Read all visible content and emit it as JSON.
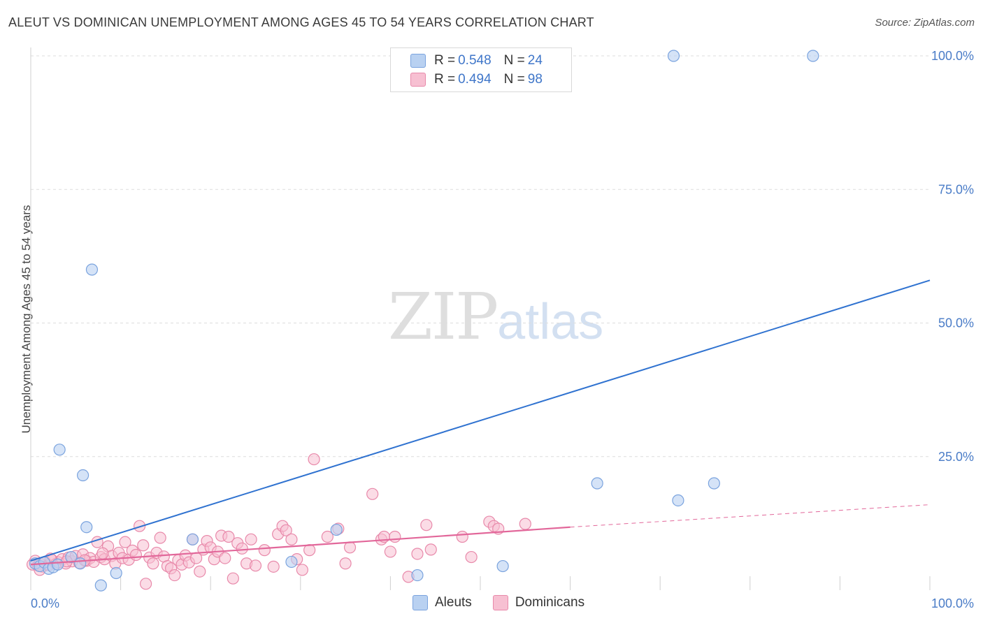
{
  "header": {
    "title": "ALEUT VS DOMINICAN UNEMPLOYMENT AMONG AGES 45 TO 54 YEARS CORRELATION CHART",
    "source": "Source: ZipAtlas.com"
  },
  "watermark": {
    "zip": "ZIP",
    "atlas": "atlas"
  },
  "legend": {
    "rows": [
      {
        "r_label": "R = ",
        "r_value": "0.548",
        "n_label": "N = ",
        "n_value": "24"
      },
      {
        "r_label": "R = ",
        "r_value": "0.494",
        "n_label": "N = ",
        "n_value": "98"
      }
    ],
    "bottom": [
      "Aleuts",
      "Dominicans"
    ]
  },
  "colors": {
    "aleut_fill": "#b9d1f1",
    "aleut_stroke": "#7aa3de",
    "aleut_line": "#2f72d0",
    "dominican_fill": "#f7c0d2",
    "dominican_stroke": "#e889aa",
    "dominican_line": "#e2679a",
    "grid": "#dddddd",
    "tick_text": "#4a7cc7"
  },
  "chart_data": {
    "type": "scatter",
    "title": "ALEUT VS DOMINICAN UNEMPLOYMENT AMONG AGES 45 TO 54 YEARS CORRELATION CHART",
    "xlabel": "",
    "ylabel": "Unemployment Among Ages 45 to 54 years",
    "xlim": [
      0,
      100
    ],
    "ylim": [
      0,
      100
    ],
    "x_tick_labels": [
      "0.0%",
      "100.0%"
    ],
    "y_tick_labels": [
      "25.0%",
      "50.0%",
      "75.0%",
      "100.0%"
    ],
    "y_ticks": [
      25,
      50,
      75,
      100
    ],
    "grid": true,
    "legend_position": "top-center",
    "series": [
      {
        "name": "Aleuts",
        "points": [
          [
            0.5,
            5.0
          ],
          [
            1.0,
            4.5
          ],
          [
            1.5,
            5.2
          ],
          [
            2.0,
            4.0
          ],
          [
            2.5,
            4.3
          ],
          [
            3.0,
            4.8
          ],
          [
            3.2,
            26.3
          ],
          [
            4.5,
            6.2
          ],
          [
            5.5,
            5.0
          ],
          [
            5.8,
            21.5
          ],
          [
            6.2,
            11.8
          ],
          [
            6.8,
            60.0
          ],
          [
            7.8,
            0.9
          ],
          [
            9.5,
            3.2
          ],
          [
            18.0,
            9.5
          ],
          [
            29.0,
            5.3
          ],
          [
            34.0,
            11.3
          ],
          [
            43.0,
            2.8
          ],
          [
            52.5,
            4.5
          ],
          [
            63.0,
            20.0
          ],
          [
            71.5,
            100.0
          ],
          [
            72.0,
            16.8
          ],
          [
            76.0,
            20.0
          ],
          [
            87.0,
            100.0
          ]
        ],
        "trend": {
          "x": [
            0,
            100
          ],
          "y": [
            5.5,
            58.0
          ]
        }
      },
      {
        "name": "Dominicans",
        "points": [
          [
            0.2,
            4.8
          ],
          [
            0.5,
            5.5
          ],
          [
            0.8,
            4.6
          ],
          [
            1.0,
            5.0
          ],
          [
            1.3,
            4.4
          ],
          [
            1.6,
            5.3
          ],
          [
            2.0,
            4.7
          ],
          [
            2.4,
            5.6
          ],
          [
            2.8,
            4.9
          ],
          [
            3.1,
            5.2
          ],
          [
            3.5,
            5.8
          ],
          [
            3.9,
            5.0
          ],
          [
            4.2,
            6.1
          ],
          [
            4.6,
            5.4
          ],
          [
            5.0,
            6.4
          ],
          [
            5.4,
            5.1
          ],
          [
            5.8,
            6.7
          ],
          [
            6.2,
            5.5
          ],
          [
            6.6,
            6.0
          ],
          [
            7.0,
            5.3
          ],
          [
            7.4,
            9.0
          ],
          [
            7.8,
            6.2
          ],
          [
            8.2,
            5.8
          ],
          [
            8.6,
            8.2
          ],
          [
            9.0,
            6.4
          ],
          [
            9.4,
            5.0
          ],
          [
            9.8,
            7.0
          ],
          [
            10.2,
            6.0
          ],
          [
            10.5,
            9.0
          ],
          [
            10.9,
            5.7
          ],
          [
            11.3,
            7.4
          ],
          [
            11.7,
            6.6
          ],
          [
            12.1,
            12.0
          ],
          [
            12.5,
            8.4
          ],
          [
            12.8,
            1.2
          ],
          [
            13.2,
            6.1
          ],
          [
            13.6,
            5.0
          ],
          [
            14.0,
            7.0
          ],
          [
            14.4,
            9.8
          ],
          [
            14.8,
            6.3
          ],
          [
            15.2,
            4.5
          ],
          [
            15.6,
            4.1
          ],
          [
            16.0,
            2.8
          ],
          [
            16.4,
            5.6
          ],
          [
            16.8,
            4.8
          ],
          [
            17.2,
            6.5
          ],
          [
            17.6,
            5.2
          ],
          [
            18.0,
            9.5
          ],
          [
            18.4,
            6.0
          ],
          [
            18.8,
            3.5
          ],
          [
            19.2,
            7.6
          ],
          [
            19.6,
            9.2
          ],
          [
            20.0,
            8.0
          ],
          [
            20.4,
            5.8
          ],
          [
            20.8,
            7.2
          ],
          [
            21.2,
            10.2
          ],
          [
            21.6,
            6.0
          ],
          [
            22.0,
            10.0
          ],
          [
            22.5,
            2.2
          ],
          [
            23.0,
            8.8
          ],
          [
            23.5,
            7.8
          ],
          [
            24.0,
            5.0
          ],
          [
            24.5,
            9.5
          ],
          [
            25.0,
            4.6
          ],
          [
            26.0,
            7.5
          ],
          [
            27.0,
            4.4
          ],
          [
            27.5,
            10.5
          ],
          [
            28.0,
            12.0
          ],
          [
            28.4,
            11.2
          ],
          [
            29.0,
            9.5
          ],
          [
            29.6,
            5.8
          ],
          [
            30.2,
            3.8
          ],
          [
            31.0,
            7.5
          ],
          [
            31.5,
            24.5
          ],
          [
            33.0,
            10.0
          ],
          [
            34.2,
            11.5
          ],
          [
            35.0,
            5.0
          ],
          [
            35.5,
            8.0
          ],
          [
            38.0,
            18.0
          ],
          [
            39.0,
            9.5
          ],
          [
            39.3,
            10.0
          ],
          [
            40.0,
            7.2
          ],
          [
            40.5,
            10.0
          ],
          [
            42.0,
            2.5
          ],
          [
            43.0,
            6.8
          ],
          [
            44.0,
            12.2
          ],
          [
            44.5,
            7.6
          ],
          [
            48.0,
            10.0
          ],
          [
            49.0,
            6.2
          ],
          [
            51.0,
            12.8
          ],
          [
            51.5,
            12.0
          ],
          [
            52.0,
            11.5
          ],
          [
            55.0,
            12.4
          ],
          [
            1.0,
            3.8
          ],
          [
            2.2,
            5.9
          ],
          [
            4.0,
            5.4
          ],
          [
            6.0,
            5.6
          ],
          [
            8.0,
            6.9
          ]
        ],
        "trend": {
          "x": [
            0,
            60
          ],
          "y": [
            4.8,
            11.8
          ]
        },
        "trend_extension": {
          "x": [
            60,
            100
          ],
          "y": [
            11.8,
            16.0
          ]
        }
      }
    ]
  }
}
